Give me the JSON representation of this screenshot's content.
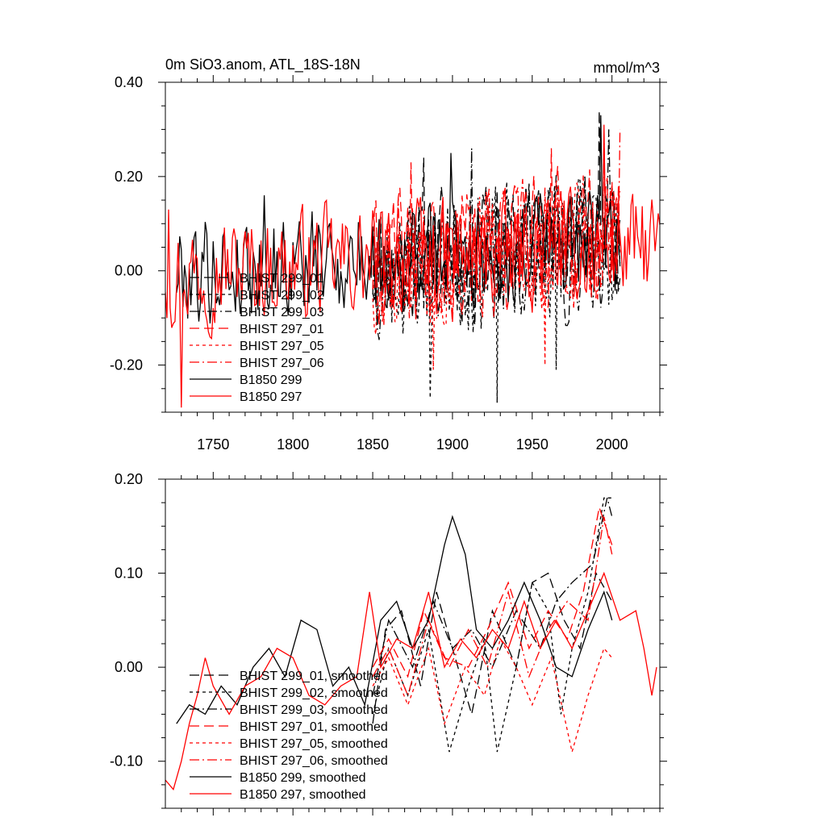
{
  "figure": {
    "title_left": "0m SiO3.anom, ATL_18S-18N",
    "title_right": "mmol/m^3"
  },
  "chart_data": [
    {
      "type": "line",
      "title": "0m SiO3.anom, ATL_18S-18N",
      "units": "mmol/m^3",
      "xlim": [
        1720,
        2030
      ],
      "ylim": [
        -0.3,
        0.4
      ],
      "xticks": [
        1750,
        1800,
        1850,
        1900,
        1950,
        2000
      ],
      "xtick_labels": [
        "1750",
        "1800",
        "1850",
        "1900",
        "1950",
        "2000"
      ],
      "yticks": [
        -0.2,
        0.0,
        0.2,
        0.4
      ],
      "ytick_labels": [
        "-0.20",
        "0.00",
        "0.20",
        "0.40"
      ],
      "legend": [
        "BHIST 299_01",
        "BHIST 299_02",
        "BHIST 299_03",
        "BHIST 297_01",
        "BHIST 297_05",
        "BHIST 297_06",
        "B1850 299",
        "B1850 297"
      ],
      "series": [
        {
          "name": "BHIST 299_01",
          "color": "#000000",
          "dash": "long",
          "x_start": 1850,
          "x_end": 2005,
          "mean_start": 0.02,
          "mean_end": 0.07,
          "amp": 0.13,
          "seed": 11,
          "extremes": [
            [
              1882,
              0.24
            ],
            [
              1992,
              0.34
            ]
          ]
        },
        {
          "name": "BHIST 299_02",
          "color": "#000000",
          "dash": "short",
          "x_start": 1850,
          "x_end": 2005,
          "mean_start": 0.0,
          "mean_end": 0.06,
          "amp": 0.13,
          "seed": 23,
          "extremes": [
            [
              1886,
              -0.27
            ],
            [
              1928,
              -0.28
            ],
            [
              1965,
              -0.21
            ]
          ]
        },
        {
          "name": "BHIST 299_03",
          "color": "#000000",
          "dash": "dashdot",
          "x_start": 1850,
          "x_end": 2005,
          "mean_start": 0.01,
          "mean_end": 0.07,
          "amp": 0.12,
          "seed": 37,
          "extremes": [
            [
              1912,
              0.26
            ],
            [
              1998,
              0.3
            ]
          ]
        },
        {
          "name": "BHIST 297_01",
          "color": "#ff0000",
          "dash": "long",
          "x_start": 1850,
          "x_end": 2005,
          "mean_start": 0.02,
          "mean_end": 0.08,
          "amp": 0.12,
          "seed": 41,
          "extremes": [
            [
              1874,
              0.23
            ],
            [
              1962,
              0.26
            ]
          ]
        },
        {
          "name": "BHIST 297_05",
          "color": "#ff0000",
          "dash": "short",
          "x_start": 1850,
          "x_end": 2005,
          "mean_start": 0.0,
          "mean_end": 0.07,
          "amp": 0.12,
          "seed": 53,
          "extremes": [
            [
              1888,
              -0.21
            ],
            [
              1958,
              -0.2
            ]
          ]
        },
        {
          "name": "BHIST 297_06",
          "color": "#ff0000",
          "dash": "dashdot",
          "x_start": 1850,
          "x_end": 2005,
          "mean_start": 0.02,
          "mean_end": 0.08,
          "amp": 0.12,
          "seed": 67,
          "extremes": [
            [
              1995,
              0.29
            ],
            [
              2005,
              0.3
            ]
          ]
        },
        {
          "name": "B1850 299",
          "color": "#000000",
          "dash": "solid",
          "x_start": 1727,
          "x_end": 2005,
          "mean_start": 0.0,
          "mean_end": 0.06,
          "amp": 0.1,
          "seed": 79,
          "extremes": [
            [
              1782,
              0.16
            ],
            [
              1899,
              0.25
            ],
            [
              1993,
              0.33
            ]
          ]
        },
        {
          "name": "B1850 297",
          "color": "#ff0000",
          "dash": "solid",
          "x_start": 1720,
          "x_end": 2030,
          "mean_start": 0.0,
          "mean_end": 0.05,
          "amp": 0.1,
          "seed": 97,
          "extremes": [
            [
              1722,
              0.13
            ],
            [
              1730,
              -0.29
            ],
            [
              1995,
              0.31
            ]
          ]
        }
      ]
    },
    {
      "type": "line",
      "title": "",
      "xlim": [
        1720,
        2030
      ],
      "ylim": [
        -0.15,
        0.2
      ],
      "xticks": [
        1750,
        1800,
        1850,
        1900,
        1950,
        2000
      ],
      "xtick_labels": [],
      "yticks": [
        -0.1,
        0.0,
        0.1,
        0.2
      ],
      "ytick_labels": [
        "-0.10",
        "0.00",
        "0.10",
        "0.20"
      ],
      "legend": [
        "BHIST 299_01, smoothed",
        "BHIST 299_02, smoothed",
        "BHIST 299_03, smoothed",
        "BHIST 297_01, smoothed",
        "BHIST 297_05, smoothed",
        "BHIST 297_06, smoothed",
        "B1850 299, smoothed",
        "B1850 297, smoothed"
      ],
      "series": [
        {
          "name": "BHIST 299_01, smoothed",
          "color": "#000000",
          "dash": "long",
          "points": [
            [
              1850,
              -0.06
            ],
            [
              1858,
              0.04
            ],
            [
              1868,
              0.06
            ],
            [
              1880,
              -0.02
            ],
            [
              1890,
              0.08
            ],
            [
              1900,
              0.02
            ],
            [
              1912,
              -0.05
            ],
            [
              1925,
              0.06
            ],
            [
              1940,
              0.0
            ],
            [
              1950,
              0.09
            ],
            [
              1960,
              0.1
            ],
            [
              1970,
              0.05
            ],
            [
              1980,
              0.02
            ],
            [
              1990,
              0.1
            ],
            [
              2000,
              0.07
            ]
          ]
        },
        {
          "name": "BHIST 299_02, smoothed",
          "color": "#000000",
          "dash": "short",
          "points": [
            [
              1850,
              -0.05
            ],
            [
              1860,
              0.02
            ],
            [
              1872,
              -0.03
            ],
            [
              1885,
              0.04
            ],
            [
              1898,
              -0.09
            ],
            [
              1910,
              -0.02
            ],
            [
              1920,
              0.03
            ],
            [
              1928,
              -0.09
            ],
            [
              1940,
              0.0
            ],
            [
              1950,
              0.09
            ],
            [
              1960,
              0.06
            ],
            [
              1968,
              -0.05
            ],
            [
              1975,
              0.02
            ],
            [
              1985,
              0.08
            ],
            [
              1995,
              0.18
            ],
            [
              2000,
              0.18
            ]
          ]
        },
        {
          "name": "BHIST 299_03, smoothed",
          "color": "#000000",
          "dash": "dashdot",
          "points": [
            [
              1850,
              -0.03
            ],
            [
              1860,
              0.05
            ],
            [
              1875,
              0.0
            ],
            [
              1888,
              0.07
            ],
            [
              1900,
              0.02
            ],
            [
              1912,
              0.04
            ],
            [
              1925,
              0.0
            ],
            [
              1940,
              0.06
            ],
            [
              1955,
              0.02
            ],
            [
              1965,
              0.07
            ],
            [
              1975,
              0.09
            ],
            [
              1988,
              0.11
            ],
            [
              1997,
              0.18
            ],
            [
              2000,
              0.16
            ]
          ]
        },
        {
          "name": "BHIST 297_01, smoothed",
          "color": "#ff0000",
          "dash": "long",
          "points": [
            [
              1850,
              0.0
            ],
            [
              1860,
              0.03
            ],
            [
              1872,
              -0.01
            ],
            [
              1882,
              0.06
            ],
            [
              1895,
              0.01
            ],
            [
              1910,
              0.0
            ],
            [
              1922,
              0.04
            ],
            [
              1935,
              0.09
            ],
            [
              1948,
              0.02
            ],
            [
              1960,
              0.06
            ],
            [
              1972,
              0.03
            ],
            [
              1982,
              0.08
            ],
            [
              1992,
              0.17
            ],
            [
              2000,
              0.13
            ]
          ]
        },
        {
          "name": "BHIST 297_05, smoothed",
          "color": "#ff0000",
          "dash": "short",
          "points": [
            [
              1850,
              -0.02
            ],
            [
              1860,
              0.01
            ],
            [
              1872,
              -0.04
            ],
            [
              1885,
              0.02
            ],
            [
              1895,
              -0.06
            ],
            [
              1908,
              0.0
            ],
            [
              1920,
              -0.03
            ],
            [
              1930,
              0.03
            ],
            [
              1940,
              0.0
            ],
            [
              1950,
              -0.04
            ],
            [
              1962,
              0.01
            ],
            [
              1975,
              -0.09
            ],
            [
              1985,
              -0.03
            ],
            [
              1995,
              0.02
            ],
            [
              2000,
              0.01
            ]
          ]
        },
        {
          "name": "BHIST 297_06, smoothed",
          "color": "#ff0000",
          "dash": "dashdot",
          "points": [
            [
              1850,
              -0.01
            ],
            [
              1860,
              0.02
            ],
            [
              1872,
              -0.03
            ],
            [
              1885,
              0.05
            ],
            [
              1898,
              0.0
            ],
            [
              1910,
              0.04
            ],
            [
              1922,
              0.0
            ],
            [
              1935,
              0.08
            ],
            [
              1948,
              -0.01
            ],
            [
              1960,
              0.04
            ],
            [
              1972,
              0.07
            ],
            [
              1985,
              0.05
            ],
            [
              1995,
              0.16
            ],
            [
              2000,
              0.12
            ]
          ]
        },
        {
          "name": "B1850 299, smoothed",
          "color": "#000000",
          "dash": "solid",
          "points": [
            [
              1727,
              -0.06
            ],
            [
              1735,
              -0.04
            ],
            [
              1745,
              -0.05
            ],
            [
              1755,
              -0.02
            ],
            [
              1765,
              -0.04
            ],
            [
              1775,
              0.0
            ],
            [
              1785,
              0.02
            ],
            [
              1795,
              -0.01
            ],
            [
              1805,
              0.05
            ],
            [
              1815,
              0.04
            ],
            [
              1825,
              -0.02
            ],
            [
              1835,
              0.0
            ],
            [
              1845,
              -0.04
            ],
            [
              1855,
              0.05
            ],
            [
              1865,
              0.07
            ],
            [
              1875,
              0.02
            ],
            [
              1885,
              0.05
            ],
            [
              1895,
              0.13
            ],
            [
              1900,
              0.16
            ],
            [
              1908,
              0.12
            ],
            [
              1915,
              0.04
            ],
            [
              1925,
              0.02
            ],
            [
              1935,
              0.05
            ],
            [
              1945,
              0.09
            ],
            [
              1955,
              0.05
            ],
            [
              1965,
              0.0
            ],
            [
              1975,
              -0.01
            ],
            [
              1985,
              0.04
            ],
            [
              1995,
              0.08
            ],
            [
              2000,
              0.05
            ]
          ]
        },
        {
          "name": "B1850 297, smoothed",
          "color": "#ff0000",
          "dash": "solid",
          "points": [
            [
              1720,
              -0.12
            ],
            [
              1725,
              -0.13
            ],
            [
              1730,
              -0.1
            ],
            [
              1735,
              -0.06
            ],
            [
              1740,
              -0.03
            ],
            [
              1745,
              0.01
            ],
            [
              1750,
              -0.02
            ],
            [
              1760,
              -0.05
            ],
            [
              1770,
              -0.02
            ],
            [
              1780,
              -0.01
            ],
            [
              1790,
              0.02
            ],
            [
              1800,
              0.01
            ],
            [
              1810,
              -0.03
            ],
            [
              1820,
              -0.04
            ],
            [
              1830,
              -0.02
            ],
            [
              1840,
              -0.01
            ],
            [
              1848,
              0.08
            ],
            [
              1855,
              0.0
            ],
            [
              1865,
              0.03
            ],
            [
              1875,
              0.02
            ],
            [
              1885,
              0.08
            ],
            [
              1895,
              0.0
            ],
            [
              1905,
              0.03
            ],
            [
              1915,
              0.01
            ],
            [
              1925,
              0.04
            ],
            [
              1935,
              0.02
            ],
            [
              1945,
              0.07
            ],
            [
              1955,
              0.02
            ],
            [
              1965,
              0.05
            ],
            [
              1975,
              0.02
            ],
            [
              1985,
              0.06
            ],
            [
              1995,
              0.1
            ],
            [
              2005,
              0.05
            ],
            [
              2015,
              0.06
            ],
            [
              2020,
              0.02
            ],
            [
              2025,
              -0.03
            ],
            [
              2028,
              0.0
            ]
          ]
        }
      ]
    }
  ]
}
